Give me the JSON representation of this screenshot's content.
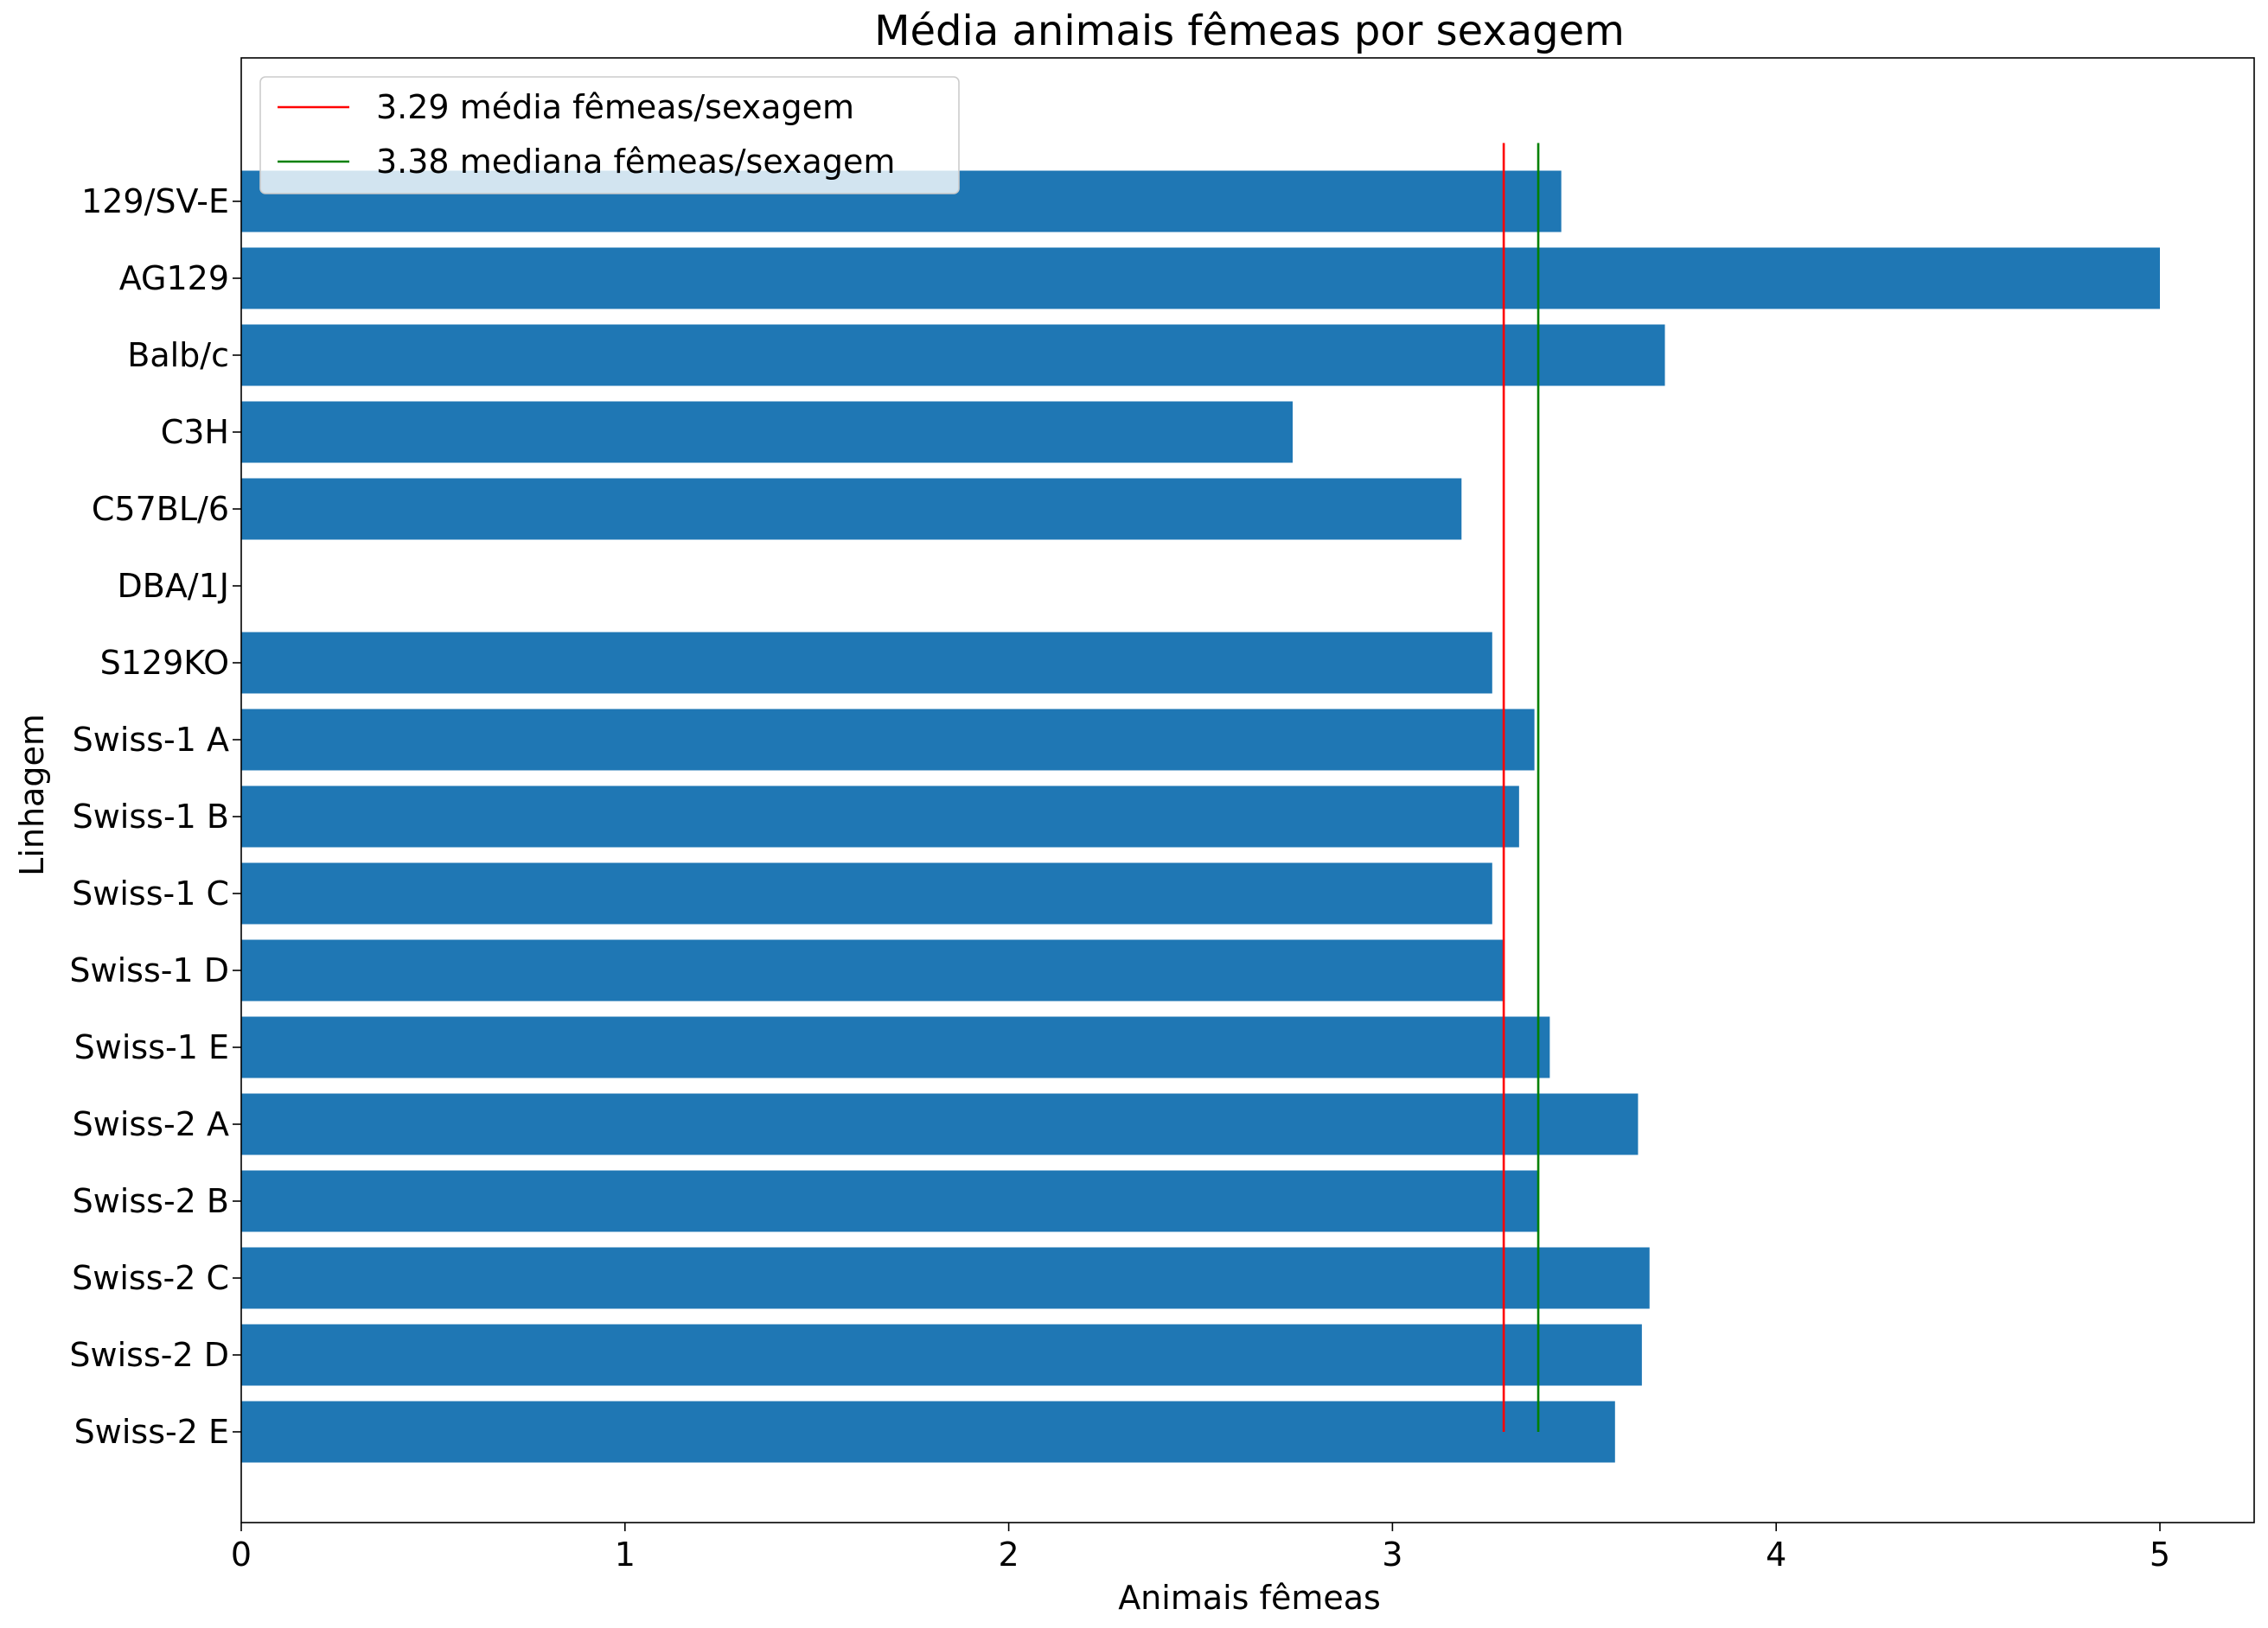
{
  "chart_data": {
    "type": "bar",
    "orientation": "horizontal",
    "title": "Média animais fêmeas por sexagem",
    "xlabel": "Animais fêmeas",
    "ylabel": "Linhagem",
    "xlim": [
      0,
      5.25
    ],
    "xticks": [
      "0",
      "1",
      "2",
      "3",
      "4",
      "5"
    ],
    "categories": [
      "129/SV-E",
      "AG129",
      "Balb/c",
      "C3H",
      "C57BL/6",
      "DBA/1J",
      "S129KO",
      "Swiss-1 A",
      "Swiss-1 B",
      "Swiss-1 C",
      "Swiss-1 D",
      "Swiss-1 E",
      "Swiss-2 A",
      "Swiss-2 B",
      "Swiss-2 C",
      "Swiss-2 D",
      "Swiss-2 E"
    ],
    "values": [
      3.44,
      5.0,
      3.71,
      2.74,
      3.18,
      0,
      3.26,
      3.37,
      3.33,
      3.26,
      3.29,
      3.41,
      3.64,
      3.38,
      3.67,
      3.65,
      3.58
    ],
    "bar_color": "#1f77b4",
    "reference_lines": [
      {
        "label": "3.29 média fêmeas/sexagem",
        "value": 3.29,
        "color": "#ff0000"
      },
      {
        "label": "3.38 mediana fêmeas/sexagem",
        "value": 3.38,
        "color": "#008000"
      }
    ],
    "legend_position": "upper-left",
    "grid": false
  }
}
